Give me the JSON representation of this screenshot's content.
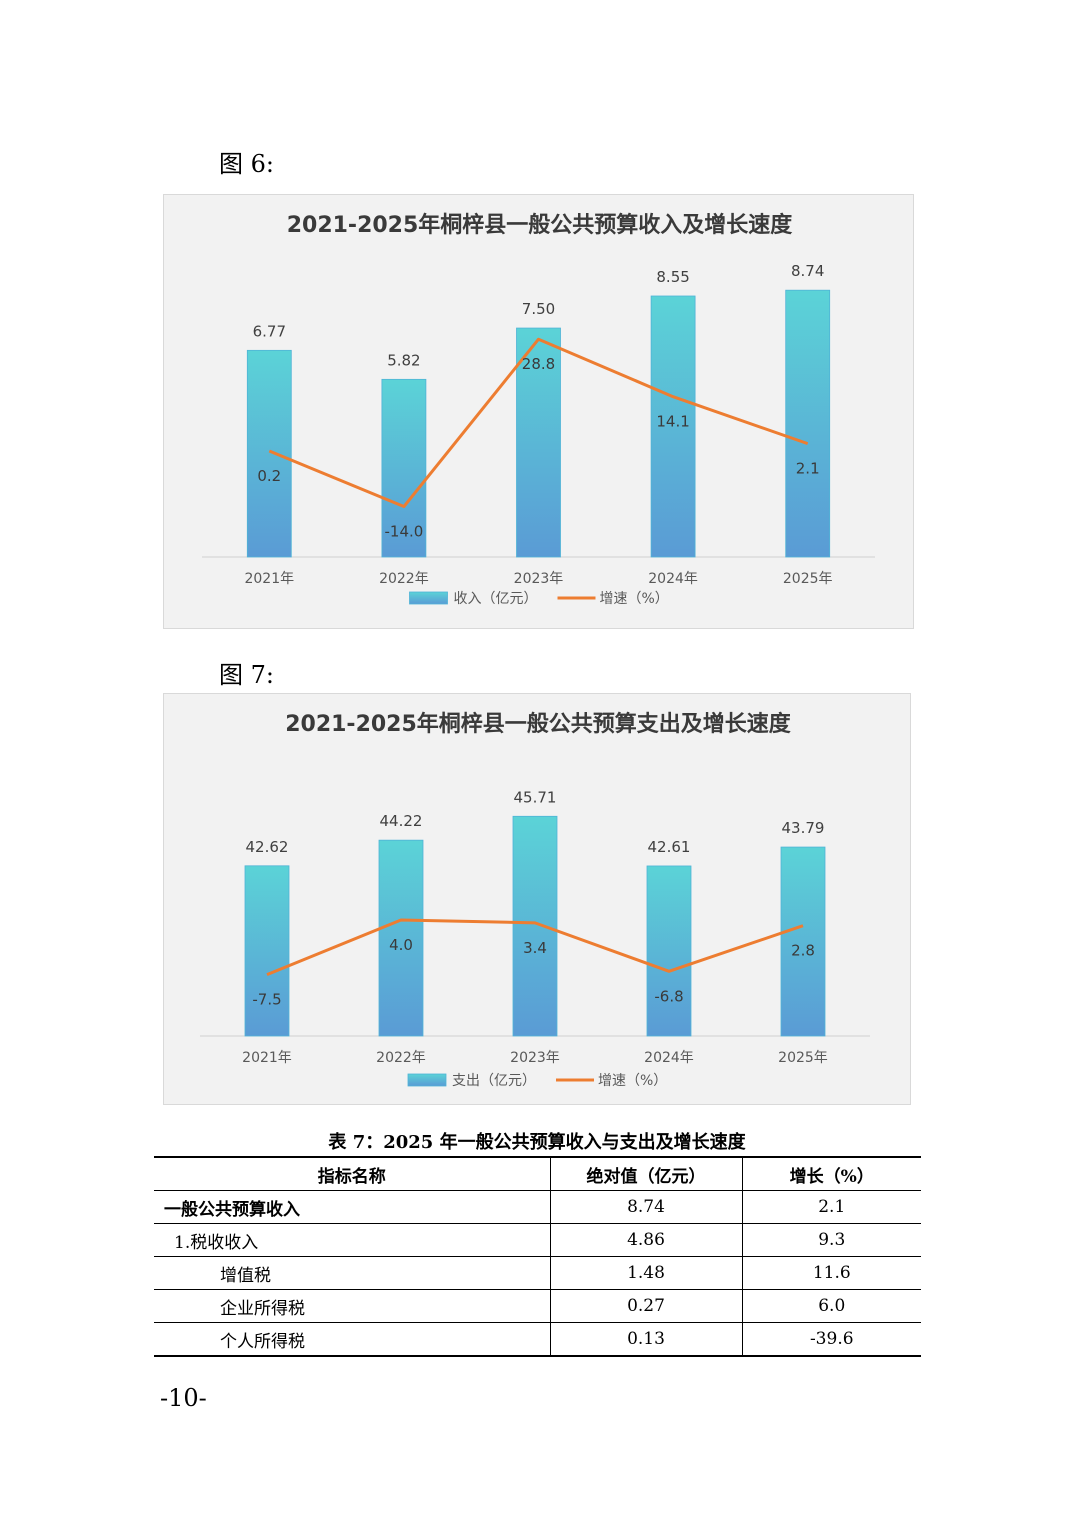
{
  "figures": [
    {
      "label": "图 6:"
    },
    {
      "label": "图 7:"
    }
  ],
  "chart_data": [
    {
      "type": "bar",
      "title": "2021-2025年桐梓县一般公共预算收入及增长速度",
      "categories": [
        "2021年",
        "2022年",
        "2023年",
        "2024年",
        "2025年"
      ],
      "series": [
        {
          "name": "收入（亿元）",
          "type": "bar",
          "values": [
            6.77,
            5.82,
            7.5,
            8.55,
            8.74
          ],
          "labels": [
            "6.77",
            "5.82",
            "7.50",
            "8.55",
            "8.74"
          ]
        },
        {
          "name": "增速（%）",
          "type": "line",
          "values": [
            0.2,
            -14.0,
            28.8,
            14.1,
            2.1
          ],
          "labels": [
            "0.2",
            "-14.0",
            "28.8",
            "14.1",
            "2.1"
          ]
        }
      ],
      "bar_color_top": "#5bd3d7",
      "bar_color_bottom": "#5a9bd5",
      "line_color": "#ed7d31",
      "legend_position": "bottom",
      "grid": false
    },
    {
      "type": "bar",
      "title": "2021-2025年桐梓县一般公共预算支出及增长速度",
      "categories": [
        "2021年",
        "2022年",
        "2023年",
        "2024年",
        "2025年"
      ],
      "series": [
        {
          "name": "支出（亿元）",
          "type": "bar",
          "values": [
            42.62,
            44.22,
            45.71,
            42.61,
            43.79
          ],
          "labels": [
            "42.62",
            "44.22",
            "45.71",
            "42.61",
            "43.79"
          ]
        },
        {
          "name": "增速（%）",
          "type": "line",
          "values": [
            -7.5,
            4.0,
            3.4,
            -6.8,
            2.8
          ],
          "labels": [
            "-7.5",
            "4.0",
            "3.4",
            "-6.8",
            "2.8"
          ]
        }
      ],
      "bar_color_top": "#5bd3d7",
      "bar_color_bottom": "#5a9bd5",
      "line_color": "#ed7d31",
      "legend_position": "bottom",
      "grid": false
    }
  ],
  "table": {
    "caption": "表 7：2025 年一般公共预算收入与支出及增长速度",
    "headers": [
      "指标名称",
      "绝对值（亿元）",
      "增长（%）"
    ],
    "rows": [
      {
        "name": "一般公共预算收入",
        "value": "8.74",
        "growth": "2.1",
        "level": 0
      },
      {
        "name": "1.税收收入",
        "value": "4.86",
        "growth": "9.3",
        "level": 1
      },
      {
        "name": "增值税",
        "value": "1.48",
        "growth": "11.6",
        "level": 2
      },
      {
        "name": "企业所得税",
        "value": "0.27",
        "growth": "6.0",
        "level": 2
      },
      {
        "name": "个人所得税",
        "value": "0.13",
        "growth": "-39.6",
        "level": 2
      }
    ]
  },
  "page_number": "-10-"
}
